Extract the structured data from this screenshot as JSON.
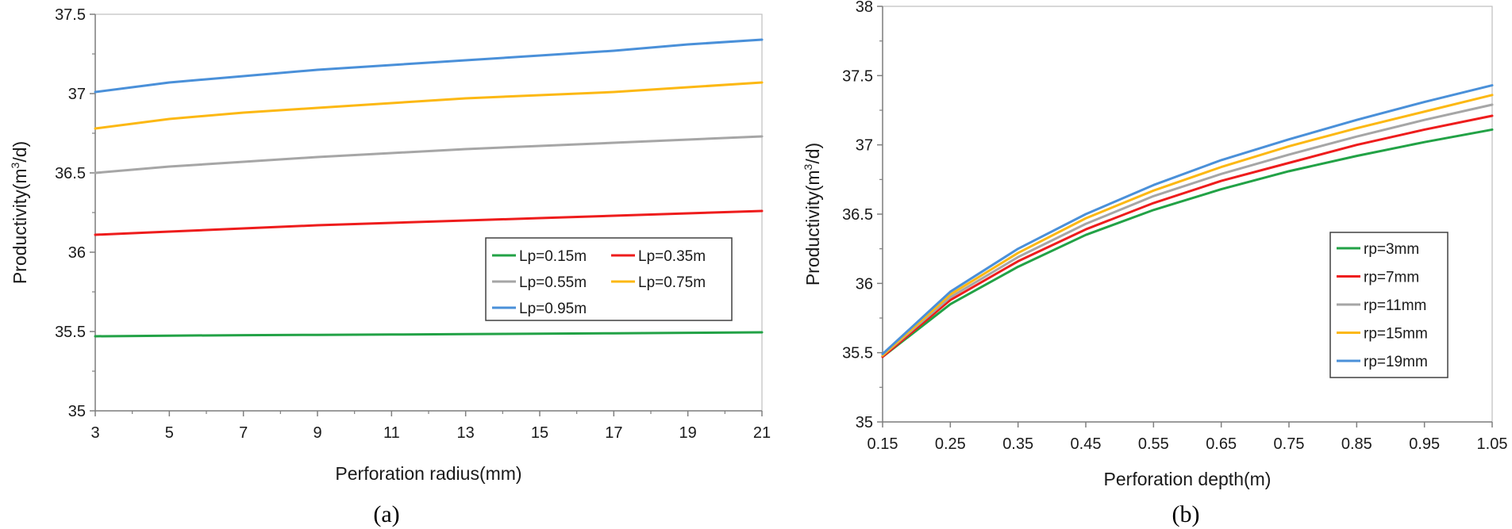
{
  "chart_data": [
    {
      "type": "line",
      "panel_label": "(a)",
      "title": "",
      "xlabel": "Perforation radius(mm)",
      "ylabel_parts": [
        "Productivity(m",
        "3",
        "/d)"
      ],
      "xlim": [
        3,
        21
      ],
      "ylim": [
        35,
        37.5
      ],
      "xticks": [
        3,
        5,
        7,
        9,
        11,
        13,
        15,
        17,
        19,
        21
      ],
      "xtick_labels": [
        "3",
        "5",
        "7",
        "9",
        "11",
        "13",
        "15",
        "17",
        "19",
        "21"
      ],
      "yticks": [
        35,
        35.5,
        36,
        36.5,
        37,
        37.5
      ],
      "ytick_labels": [
        "35",
        "35.5",
        "36",
        "36.5",
        "37",
        "37.5"
      ],
      "legend_position": "middle-right",
      "legend_columns": 2,
      "grid": false,
      "x": [
        3,
        5,
        7,
        9,
        11,
        13,
        15,
        17,
        19,
        21
      ],
      "series": [
        {
          "name": "Lp=0.15m",
          "color": "#22A246",
          "values": [
            35.47,
            35.474,
            35.477,
            35.479,
            35.481,
            35.484,
            35.486,
            35.489,
            35.492,
            35.495
          ]
        },
        {
          "name": "Lp=0.35m",
          "color": "#EE1C1C",
          "values": [
            36.11,
            36.13,
            36.15,
            36.17,
            36.185,
            36.2,
            36.215,
            36.23,
            36.245,
            36.26
          ]
        },
        {
          "name": "Lp=0.55m",
          "color": "#A6A6A6",
          "values": [
            36.5,
            36.54,
            36.57,
            36.6,
            36.625,
            36.65,
            36.67,
            36.69,
            36.71,
            36.73
          ]
        },
        {
          "name": "Lp=0.75m",
          "color": "#FCB813",
          "values": [
            36.78,
            36.84,
            36.88,
            36.91,
            36.94,
            36.97,
            36.99,
            37.01,
            37.04,
            37.07
          ]
        },
        {
          "name": "Lp=0.95m",
          "color": "#4A90D9",
          "values": [
            37.01,
            37.07,
            37.11,
            37.15,
            37.18,
            37.21,
            37.24,
            37.27,
            37.31,
            37.34
          ]
        }
      ]
    },
    {
      "type": "line",
      "panel_label": "(b)",
      "title": "",
      "xlabel": "Perforation depth(m)",
      "ylabel_parts": [
        "Productivity(m",
        "3",
        "/d)"
      ],
      "xlim": [
        0.15,
        1.05
      ],
      "ylim": [
        35,
        38
      ],
      "xticks": [
        0.15,
        0.25,
        0.35,
        0.45,
        0.55,
        0.65,
        0.75,
        0.85,
        0.95,
        1.05
      ],
      "xtick_labels": [
        "0.15",
        "0.25",
        "0.35",
        "0.45",
        "0.55",
        "0.65",
        "0.75",
        "0.85",
        "0.95",
        "1.05"
      ],
      "yticks": [
        35,
        35.5,
        36,
        36.5,
        37,
        37.5,
        38
      ],
      "ytick_labels": [
        "35",
        "35.5",
        "36",
        "36.5",
        "37",
        "37.5",
        "38"
      ],
      "legend_position": "bottom-right",
      "legend_columns": 1,
      "grid": false,
      "x": [
        0.15,
        0.25,
        0.35,
        0.45,
        0.55,
        0.65,
        0.75,
        0.85,
        0.95,
        1.05
      ],
      "series": [
        {
          "name": "rp=3mm",
          "color": "#22A246",
          "values": [
            35.47,
            35.85,
            36.12,
            36.35,
            36.53,
            36.68,
            36.81,
            36.92,
            37.02,
            37.11
          ]
        },
        {
          "name": "rp=7mm",
          "color": "#EE1C1C",
          "values": [
            35.47,
            35.88,
            36.16,
            36.39,
            36.58,
            36.74,
            36.87,
            37.0,
            37.11,
            37.21
          ]
        },
        {
          "name": "rp=11mm",
          "color": "#A6A6A6",
          "values": [
            35.48,
            35.9,
            36.19,
            36.43,
            36.63,
            36.79,
            36.93,
            37.06,
            37.18,
            37.29
          ]
        },
        {
          "name": "rp=15mm",
          "color": "#FCB813",
          "values": [
            35.48,
            35.92,
            36.22,
            36.47,
            36.67,
            36.84,
            36.99,
            37.12,
            37.24,
            37.36
          ]
        },
        {
          "name": "rp=19mm",
          "color": "#4A90D9",
          "values": [
            35.49,
            35.94,
            36.25,
            36.5,
            36.71,
            36.89,
            37.04,
            37.18,
            37.31,
            37.43
          ]
        }
      ]
    }
  ]
}
